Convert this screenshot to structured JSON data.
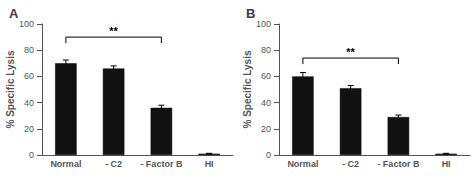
{
  "chart_data": [
    {
      "type": "bar",
      "title": "A",
      "categories": [
        "Normal",
        "- C2",
        "- Factor B",
        "HI"
      ],
      "values": [
        70,
        66,
        36,
        1
      ],
      "errors": [
        2.5,
        2.0,
        2.0,
        0.3
      ],
      "color": "#111111",
      "ylabel": "% Specific Lysis",
      "ylim": [
        0,
        100
      ],
      "yticks": [
        0,
        20,
        40,
        60,
        80,
        100
      ],
      "grid": false,
      "annotations": [
        {
          "text": "**",
          "from": "Normal",
          "to": "- Factor B",
          "y": 90
        }
      ]
    },
    {
      "type": "bar",
      "title": "B",
      "categories": [
        "Normal",
        "- C2",
        "- Factor B",
        "HI"
      ],
      "values": [
        60,
        51,
        29,
        1
      ],
      "errors": [
        3.0,
        2.0,
        1.5,
        0.3
      ],
      "color": "#111111",
      "ylabel": "% Specific Lysis",
      "ylim": [
        0,
        100
      ],
      "yticks": [
        0,
        20,
        40,
        60,
        80,
        100
      ],
      "grid": false,
      "annotations": [
        {
          "text": "**",
          "from": "Normal",
          "to": "- Factor B",
          "y": 74
        }
      ]
    }
  ]
}
